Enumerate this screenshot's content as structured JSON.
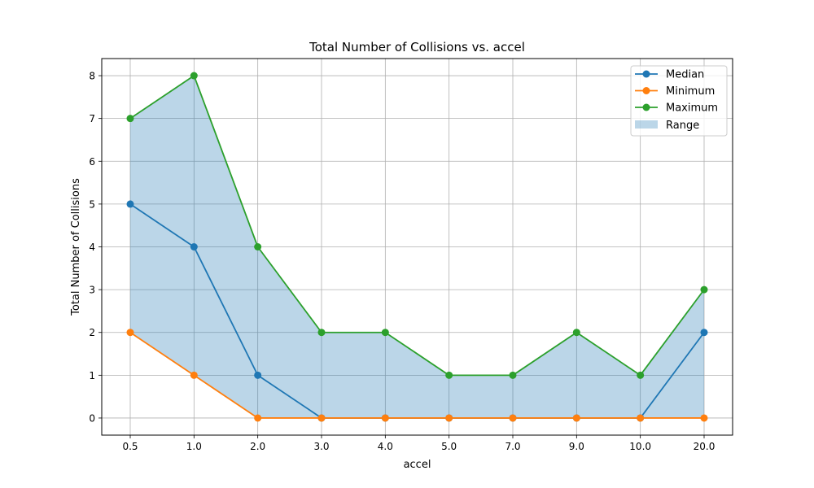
{
  "chart_data": {
    "type": "line",
    "title": "Total Number of Collisions vs. accel",
    "xlabel": "accel",
    "ylabel": "Total Number of Collisions",
    "categories": [
      "0.5",
      "1.0",
      "2.0",
      "3.0",
      "4.0",
      "5.0",
      "7.0",
      "9.0",
      "10.0",
      "20.0"
    ],
    "y_ticks": [
      "0",
      "1",
      "2",
      "3",
      "4",
      "5",
      "6",
      "7",
      "8"
    ],
    "ylim": [
      -0.4,
      8.4
    ],
    "grid": true,
    "legend_position": "top-right",
    "series": [
      {
        "name": "Median",
        "color": "#1f77b4",
        "values": [
          5,
          4,
          1,
          0,
          0,
          0,
          0,
          0,
          0,
          2
        ]
      },
      {
        "name": "Minimum",
        "color": "#ff7f0e",
        "values": [
          2,
          1,
          0,
          0,
          0,
          0,
          0,
          0,
          0,
          0
        ]
      },
      {
        "name": "Maximum",
        "color": "#2ca02c",
        "values": [
          7,
          8,
          4,
          2,
          2,
          1,
          1,
          2,
          1,
          3
        ]
      }
    ],
    "range": {
      "name": "Range",
      "color": "#1f77b4",
      "opacity": 0.3,
      "lower_series": "Minimum",
      "upper_series": "Maximum"
    }
  }
}
